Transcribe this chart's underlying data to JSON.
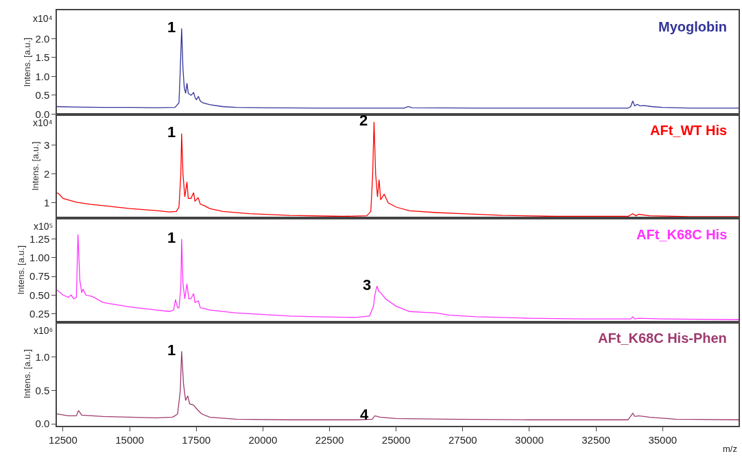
{
  "chart_data": [
    {
      "type": "line",
      "ylabel": "Intens. [a.u.]",
      "annotations": [
        "x10⁴",
        {
          "text": "1",
          "x": 16950,
          "y": 2.27
        }
      ],
      "tick_labels": "y",
      "xlim": [
        12270,
        37850
      ],
      "ylim": [
        0,
        2.75
      ],
      "yticks": [
        {
          "value": 0,
          "label": "0.0"
        },
        0.5,
        {
          "value": 1,
          "label": "1.0"
        },
        1.5,
        {
          "value": 2,
          "label": "2.0"
        }
      ],
      "x": [
        12270,
        13000,
        14000,
        15000,
        16000,
        16700,
        16850,
        16900,
        16950,
        17000,
        17050,
        17100,
        17150,
        17200,
        17300,
        17400,
        17450,
        17500,
        17580,
        17650,
        17750,
        18000,
        18500,
        19000,
        20000,
        22000,
        25300,
        25450,
        25600,
        28000,
        31000,
        33700,
        33800,
        33880,
        33950,
        34050,
        34150,
        34300,
        34600,
        35000,
        36000,
        37850
      ],
      "series": [
        {
          "name": "Myoglobin",
          "color": "#33339a",
          "values": [
            0.2,
            0.19,
            0.18,
            0.18,
            0.17,
            0.18,
            0.3,
            1.2,
            2.27,
            1.2,
            0.7,
            0.55,
            0.82,
            0.55,
            0.5,
            0.57,
            0.45,
            0.38,
            0.47,
            0.35,
            0.3,
            0.25,
            0.2,
            0.18,
            0.17,
            0.16,
            0.16,
            0.2,
            0.17,
            0.16,
            0.16,
            0.16,
            0.2,
            0.35,
            0.22,
            0.26,
            0.22,
            0.23,
            0.2,
            0.18,
            0.16,
            0.16
          ]
        }
      ]
    },
    {
      "type": "line",
      "ylabel": "Intens. [a.u.]",
      "annotations": [
        "x10⁴",
        {
          "text": "1",
          "x": 16950,
          "y": 3.4
        },
        {
          "text": "2",
          "x": 24170,
          "y": 3.8
        }
      ],
      "tick_labels": "y",
      "xlim": [
        12270,
        37850
      ],
      "ylim": [
        0.47,
        4.07
      ],
      "yticks": [
        1,
        2,
        3
      ],
      "x": [
        12270,
        12350,
        12500,
        13000,
        13500,
        14000,
        15000,
        16000,
        16500,
        16750,
        16850,
        16920,
        16950,
        17000,
        17070,
        17150,
        17200,
        17300,
        17400,
        17450,
        17570,
        17650,
        17800,
        18000,
        18500,
        19500,
        21000,
        23000,
        23900,
        24050,
        24120,
        24170,
        24230,
        24300,
        24360,
        24420,
        24550,
        24700,
        25000,
        25500,
        26500,
        27500,
        29000,
        31000,
        33700,
        33880,
        34000,
        34100,
        34500,
        36000,
        37850
      ],
      "series": [
        {
          "name": "AFt_WT His",
          "color": "#ff0000",
          "values": [
            1.35,
            1.3,
            1.15,
            1.02,
            0.95,
            0.9,
            0.8,
            0.73,
            0.68,
            0.7,
            0.85,
            2.0,
            3.4,
            2.0,
            1.2,
            1.72,
            1.15,
            1.15,
            1.35,
            1.05,
            1.18,
            0.95,
            0.9,
            0.8,
            0.7,
            0.62,
            0.56,
            0.53,
            0.55,
            0.7,
            2.0,
            3.8,
            2.0,
            1.2,
            1.8,
            1.1,
            1.3,
            1.0,
            0.85,
            0.72,
            0.66,
            0.62,
            0.56,
            0.53,
            0.53,
            0.62,
            0.55,
            0.6,
            0.55,
            0.52,
            0.52
          ]
        }
      ]
    },
    {
      "type": "line",
      "ylabel": "Intens. [a.u.]",
      "annotations": [
        "x10⁵",
        {
          "text": "1",
          "x": 16950,
          "y": 1.25
        },
        {
          "text": "3",
          "x": 24280,
          "y": 0.62
        }
      ],
      "tick_labels": "y",
      "xlim": [
        12270,
        37850
      ],
      "ylim": [
        0.14,
        1.53
      ],
      "yticks": [
        0.25,
        {
          "value": 0.5,
          "label": "0.50"
        },
        0.75,
        {
          "value": 1,
          "label": "1.00"
        },
        1.25
      ],
      "x": [
        12270,
        12500,
        12700,
        12800,
        12900,
        13000,
        13060,
        13130,
        13200,
        13250,
        13350,
        13600,
        14000,
        15000,
        16000,
        16500,
        16650,
        16720,
        16800,
        16850,
        16920,
        16950,
        17000,
        17070,
        17150,
        17220,
        17300,
        17400,
        17450,
        17580,
        17650,
        17800,
        18000,
        19000,
        20000,
        21000,
        22000,
        23500,
        24000,
        24150,
        24200,
        24280,
        24350,
        24450,
        24600,
        25000,
        25500,
        26000,
        26500,
        27000,
        28000,
        30000,
        32000,
        33800,
        33880,
        33950,
        34100,
        35000,
        37850
      ],
      "series": [
        {
          "name": "AFt_K68C His",
          "color": "#ff33ff",
          "values": [
            0.57,
            0.5,
            0.47,
            0.5,
            0.45,
            0.47,
            1.31,
            0.7,
            0.53,
            0.58,
            0.5,
            0.48,
            0.4,
            0.34,
            0.3,
            0.28,
            0.3,
            0.44,
            0.33,
            0.33,
            0.6,
            1.25,
            0.65,
            0.45,
            0.65,
            0.45,
            0.45,
            0.52,
            0.4,
            0.42,
            0.33,
            0.32,
            0.3,
            0.26,
            0.24,
            0.22,
            0.21,
            0.2,
            0.22,
            0.35,
            0.5,
            0.62,
            0.55,
            0.52,
            0.45,
            0.35,
            0.28,
            0.27,
            0.26,
            0.23,
            0.21,
            0.19,
            0.18,
            0.18,
            0.21,
            0.18,
            0.19,
            0.18,
            0.17
          ]
        }
      ]
    },
    {
      "type": "line",
      "xlabel": "m/z",
      "ylabel": "Intens. [a.u.]",
      "annotations": [
        "x10⁶",
        {
          "text": "1",
          "x": 16950,
          "y": 1.09
        },
        {
          "text": "4",
          "x": 24200,
          "y": 0.12
        }
      ],
      "xlim": [
        12270,
        37850
      ],
      "xticks": [
        12500,
        15000,
        17500,
        20000,
        22500,
        25000,
        27500,
        30000,
        32500,
        35000
      ],
      "ylim": [
        -0.03,
        1.53
      ],
      "yticks": [
        {
          "value": 0,
          "label": "0.0"
        },
        0.5,
        {
          "value": 1,
          "label": "1.0"
        }
      ],
      "x": [
        12270,
        12700,
        13000,
        13080,
        13200,
        14000,
        15000,
        16000,
        16600,
        16700,
        16800,
        16900,
        16950,
        17020,
        17100,
        17180,
        17250,
        17400,
        17550,
        17700,
        18000,
        19000,
        21000,
        23500,
        24100,
        24200,
        24400,
        25000,
        27000,
        30000,
        33700,
        33880,
        33960,
        34100,
        34500,
        35500,
        37850
      ],
      "series": [
        {
          "name": "AFt_K68C His-Phen",
          "color": "#9e3a6e",
          "values": [
            0.15,
            0.12,
            0.12,
            0.2,
            0.13,
            0.11,
            0.1,
            0.09,
            0.1,
            0.12,
            0.15,
            0.5,
            1.09,
            0.6,
            0.35,
            0.42,
            0.3,
            0.28,
            0.21,
            0.15,
            0.1,
            0.07,
            0.06,
            0.06,
            0.07,
            0.12,
            0.1,
            0.08,
            0.07,
            0.06,
            0.06,
            0.16,
            0.11,
            0.12,
            0.1,
            0.07,
            0.06
          ]
        }
      ]
    }
  ]
}
